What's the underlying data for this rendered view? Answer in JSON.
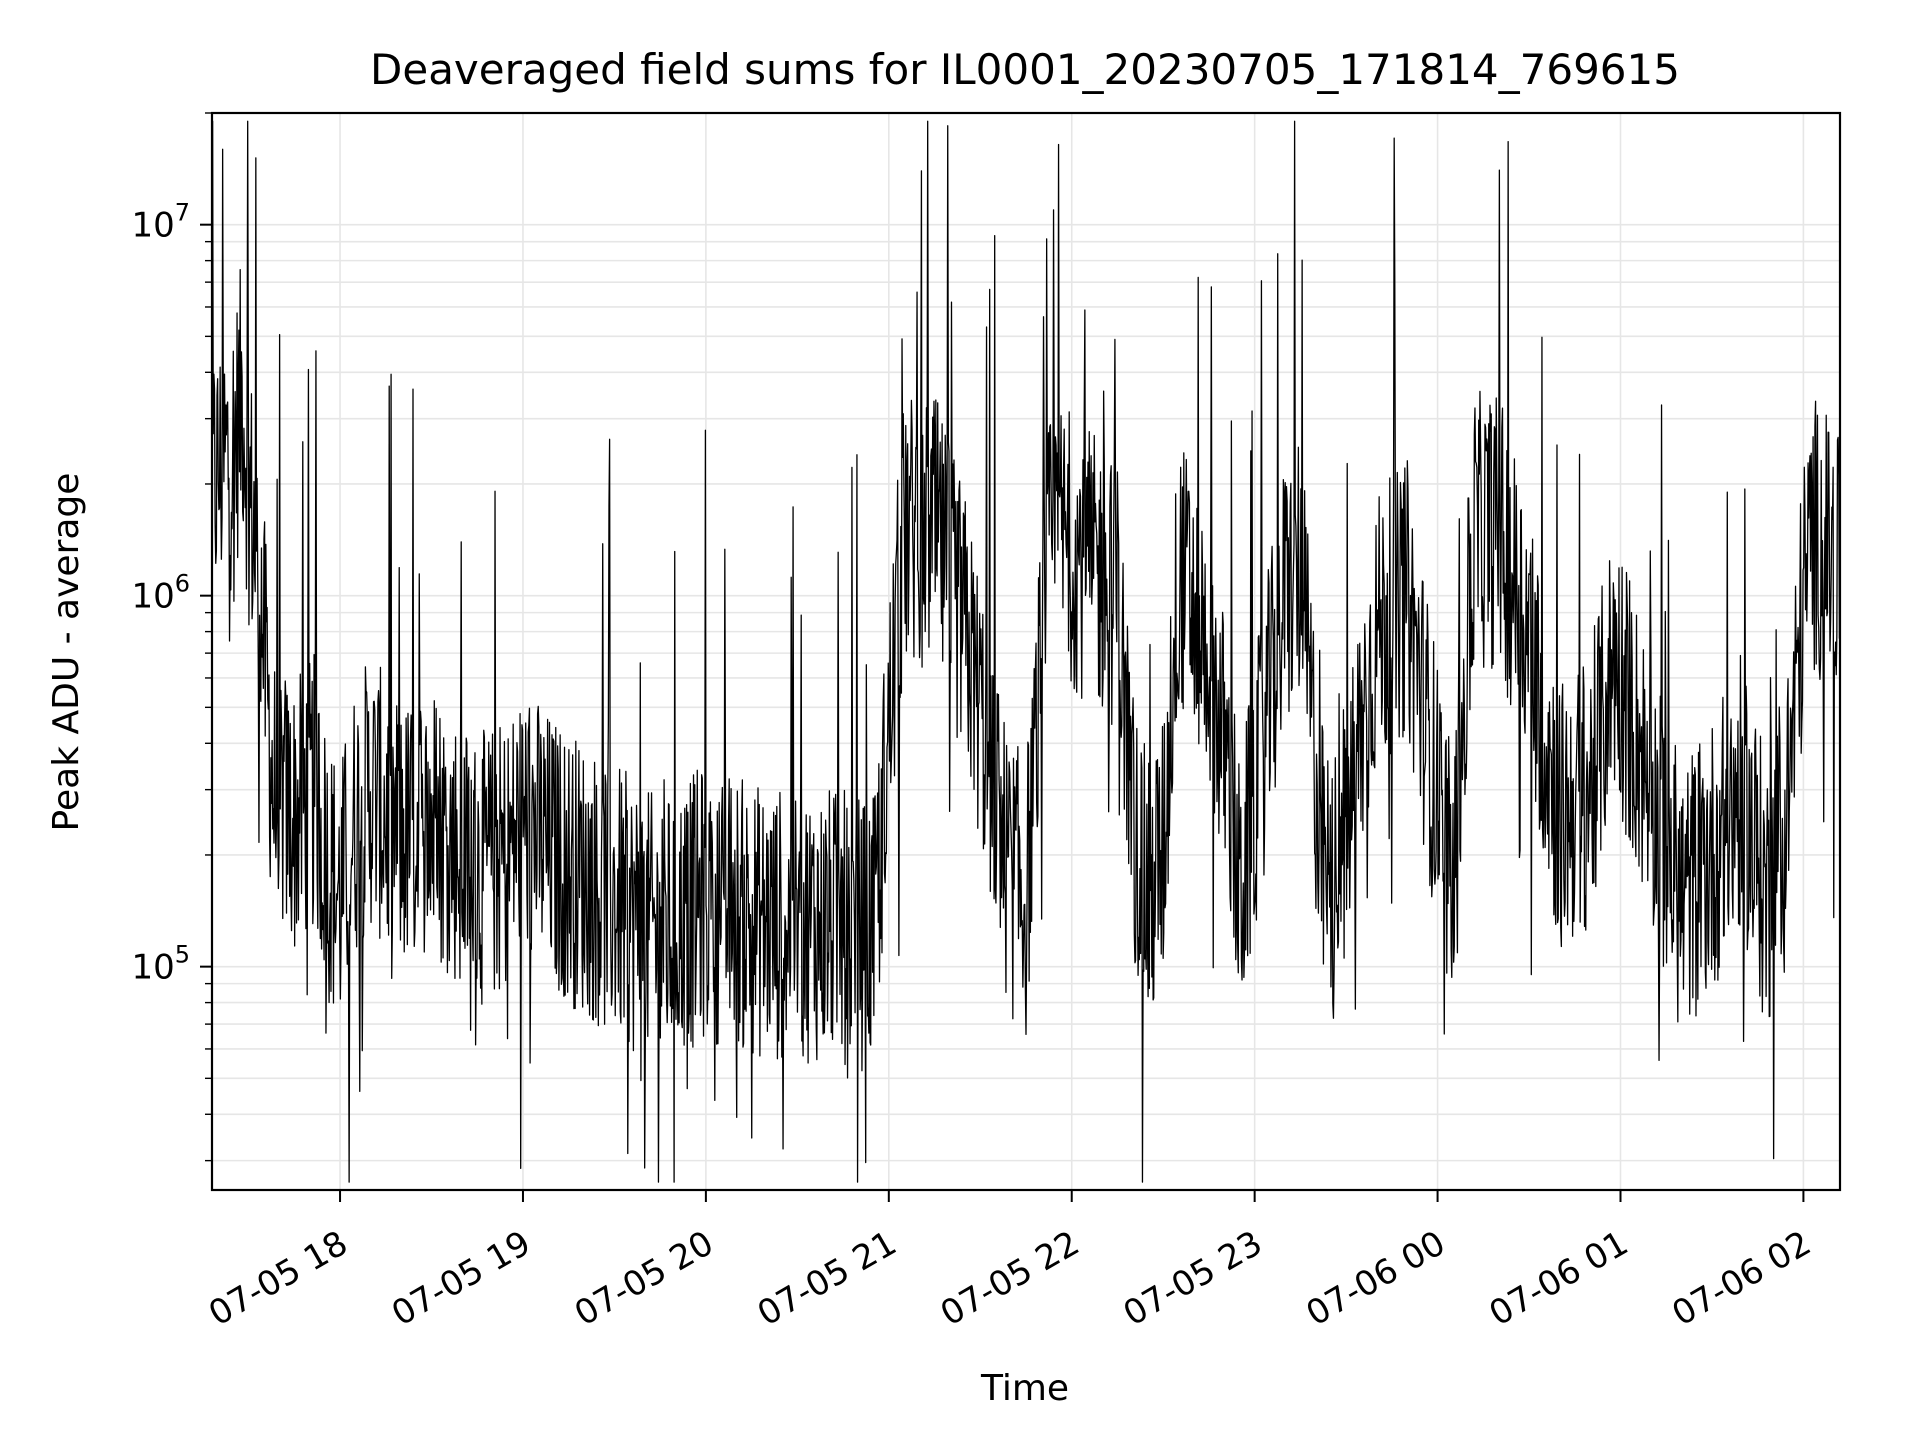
{
  "chart_data": {
    "type": "line",
    "title": "Deaveraged field sums for IL0001_20230705_171814_769615",
    "xlabel": "Time",
    "ylabel": "Peak ADU - average",
    "x_start": "2023-07-05 17:18",
    "x_end": "2023-07-06 02:12",
    "xlim": [
      "2023-07-05 17:18",
      "2023-07-06 02:12"
    ],
    "ylim": [
      25000,
      20000000
    ],
    "y_scale": "log",
    "grid": true,
    "legend": "none",
    "line_color": "#000000",
    "grid_color": "#e6e6e6",
    "x_ticks": [
      {
        "value": "2023-07-05 18:00",
        "label": "07-05 18"
      },
      {
        "value": "2023-07-05 19:00",
        "label": "07-05 19"
      },
      {
        "value": "2023-07-05 20:00",
        "label": "07-05 20"
      },
      {
        "value": "2023-07-05 21:00",
        "label": "07-05 21"
      },
      {
        "value": "2023-07-05 22:00",
        "label": "07-05 22"
      },
      {
        "value": "2023-07-05 23:00",
        "label": "07-05 23"
      },
      {
        "value": "2023-07-06 00:00",
        "label": "07-06 00"
      },
      {
        "value": "2023-07-06 01:00",
        "label": "07-06 01"
      },
      {
        "value": "2023-07-06 02:00",
        "label": "07-06 02"
      }
    ],
    "y_ticks": [
      {
        "value": 100000,
        "base": "10",
        "exp": "5"
      },
      {
        "value": 1000000,
        "base": "10",
        "exp": "6"
      },
      {
        "value": 10000000,
        "base": "10",
        "exp": "7"
      }
    ],
    "series": [
      {
        "x": [
          "2023-07-05 17:18",
          "2023-07-05 17:25",
          "2023-07-05 17:28",
          "2023-07-05 17:30",
          "2023-07-05 17:34",
          "2023-07-05 17:38",
          "2023-07-05 17:45",
          "2023-07-05 17:52",
          "2023-07-05 17:55",
          "2023-07-05 18:00",
          "2023-07-05 18:05",
          "2023-07-05 18:10",
          "2023-07-05 18:20",
          "2023-07-05 18:30",
          "2023-07-05 18:45",
          "2023-07-05 18:55",
          "2023-07-05 19:00",
          "2023-07-05 19:10",
          "2023-07-05 19:30",
          "2023-07-05 19:45",
          "2023-07-05 20:00",
          "2023-07-05 20:20",
          "2023-07-05 20:40",
          "2023-07-05 20:55",
          "2023-07-05 21:05",
          "2023-07-05 21:15",
          "2023-07-05 21:25",
          "2023-07-05 21:35",
          "2023-07-05 21:38",
          "2023-07-05 21:45",
          "2023-07-05 21:52",
          "2023-07-05 21:55",
          "2023-07-05 22:05",
          "2023-07-05 22:15",
          "2023-07-05 22:20",
          "2023-07-05 22:25",
          "2023-07-05 22:30",
          "2023-07-05 22:35",
          "2023-07-05 22:45",
          "2023-07-05 22:52",
          "2023-07-05 22:55",
          "2023-07-05 23:10",
          "2023-07-05 23:15",
          "2023-07-05 23:22",
          "2023-07-05 23:25",
          "2023-07-05 23:32",
          "2023-07-05 23:40",
          "2023-07-05 23:50",
          "2023-07-06 00:05",
          "2023-07-06 00:12",
          "2023-07-06 00:20",
          "2023-07-06 00:30",
          "2023-07-06 00:40",
          "2023-07-06 00:50",
          "2023-07-06 00:58",
          "2023-07-06 01:10",
          "2023-07-06 01:20",
          "2023-07-06 01:30",
          "2023-07-06 01:40",
          "2023-07-06 01:48",
          "2023-07-06 01:55",
          "2023-07-06 02:00",
          "2023-07-06 02:03",
          "2023-07-06 02:08",
          "2023-07-06 02:12"
        ],
        "values": [
          2000000,
          2500000,
          3500000,
          2000000,
          1000000,
          300000,
          250000,
          300000,
          200000,
          150000,
          250000,
          300000,
          220000,
          250000,
          180000,
          200000,
          250000,
          200000,
          150000,
          120000,
          150000,
          130000,
          130000,
          120000,
          1500000,
          1500000,
          800000,
          300000,
          200000,
          150000,
          1200000,
          1500000,
          1200000,
          1000000,
          250000,
          150000,
          200000,
          1200000,
          700000,
          300000,
          150000,
          1000000,
          1200000,
          200000,
          150000,
          300000,
          800000,
          1000000,
          150000,
          1500000,
          1500000,
          800000,
          250000,
          300000,
          700000,
          300000,
          150000,
          200000,
          300000,
          150000,
          300000,
          1000000,
          1500000,
          1300000,
          1100000
        ]
      }
    ]
  }
}
